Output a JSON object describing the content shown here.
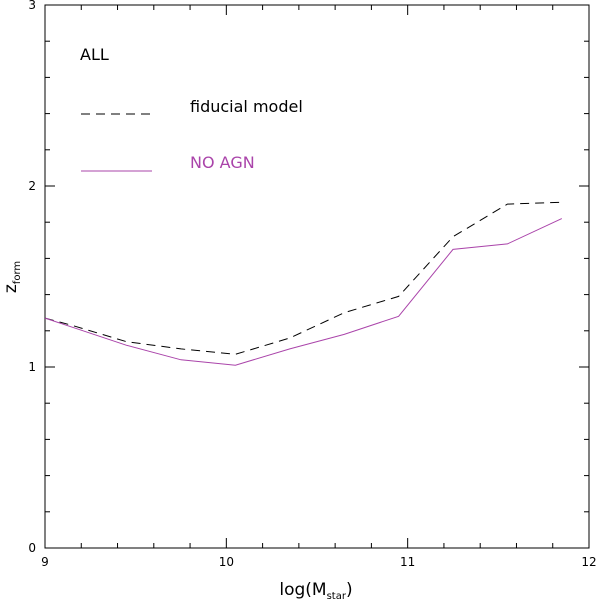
{
  "chart_data": {
    "type": "line",
    "title": "",
    "panel_label": "ALL",
    "xlabel": {
      "main": "log(M",
      "sub": "star",
      "close": ")"
    },
    "ylabel": {
      "main": "z",
      "sub": "form"
    },
    "xlim": [
      9,
      12
    ],
    "ylim": [
      0,
      3
    ],
    "x_ticks": [
      "9",
      "10",
      "11",
      "12"
    ],
    "y_ticks": [
      "0",
      "1",
      "2",
      "3"
    ],
    "grid": false,
    "legend_position": "top-left",
    "series": [
      {
        "name": "fiducial model",
        "style": "dashed",
        "color": "#000000",
        "x": [
          9.0,
          9.15,
          9.45,
          9.75,
          10.05,
          10.35,
          10.65,
          10.95,
          11.25,
          11.55,
          11.85
        ],
        "y": [
          1.27,
          1.23,
          1.14,
          1.1,
          1.07,
          1.16,
          1.3,
          1.39,
          1.72,
          1.9,
          1.91
        ]
      },
      {
        "name": "NO AGN",
        "style": "solid",
        "color": "#aa44aa",
        "x": [
          9.0,
          9.15,
          9.45,
          9.75,
          10.05,
          10.35,
          10.65,
          10.95,
          11.25,
          11.55,
          11.85
        ],
        "y": [
          1.27,
          1.22,
          1.12,
          1.04,
          1.01,
          1.1,
          1.18,
          1.28,
          1.65,
          1.68,
          1.82
        ]
      }
    ]
  }
}
